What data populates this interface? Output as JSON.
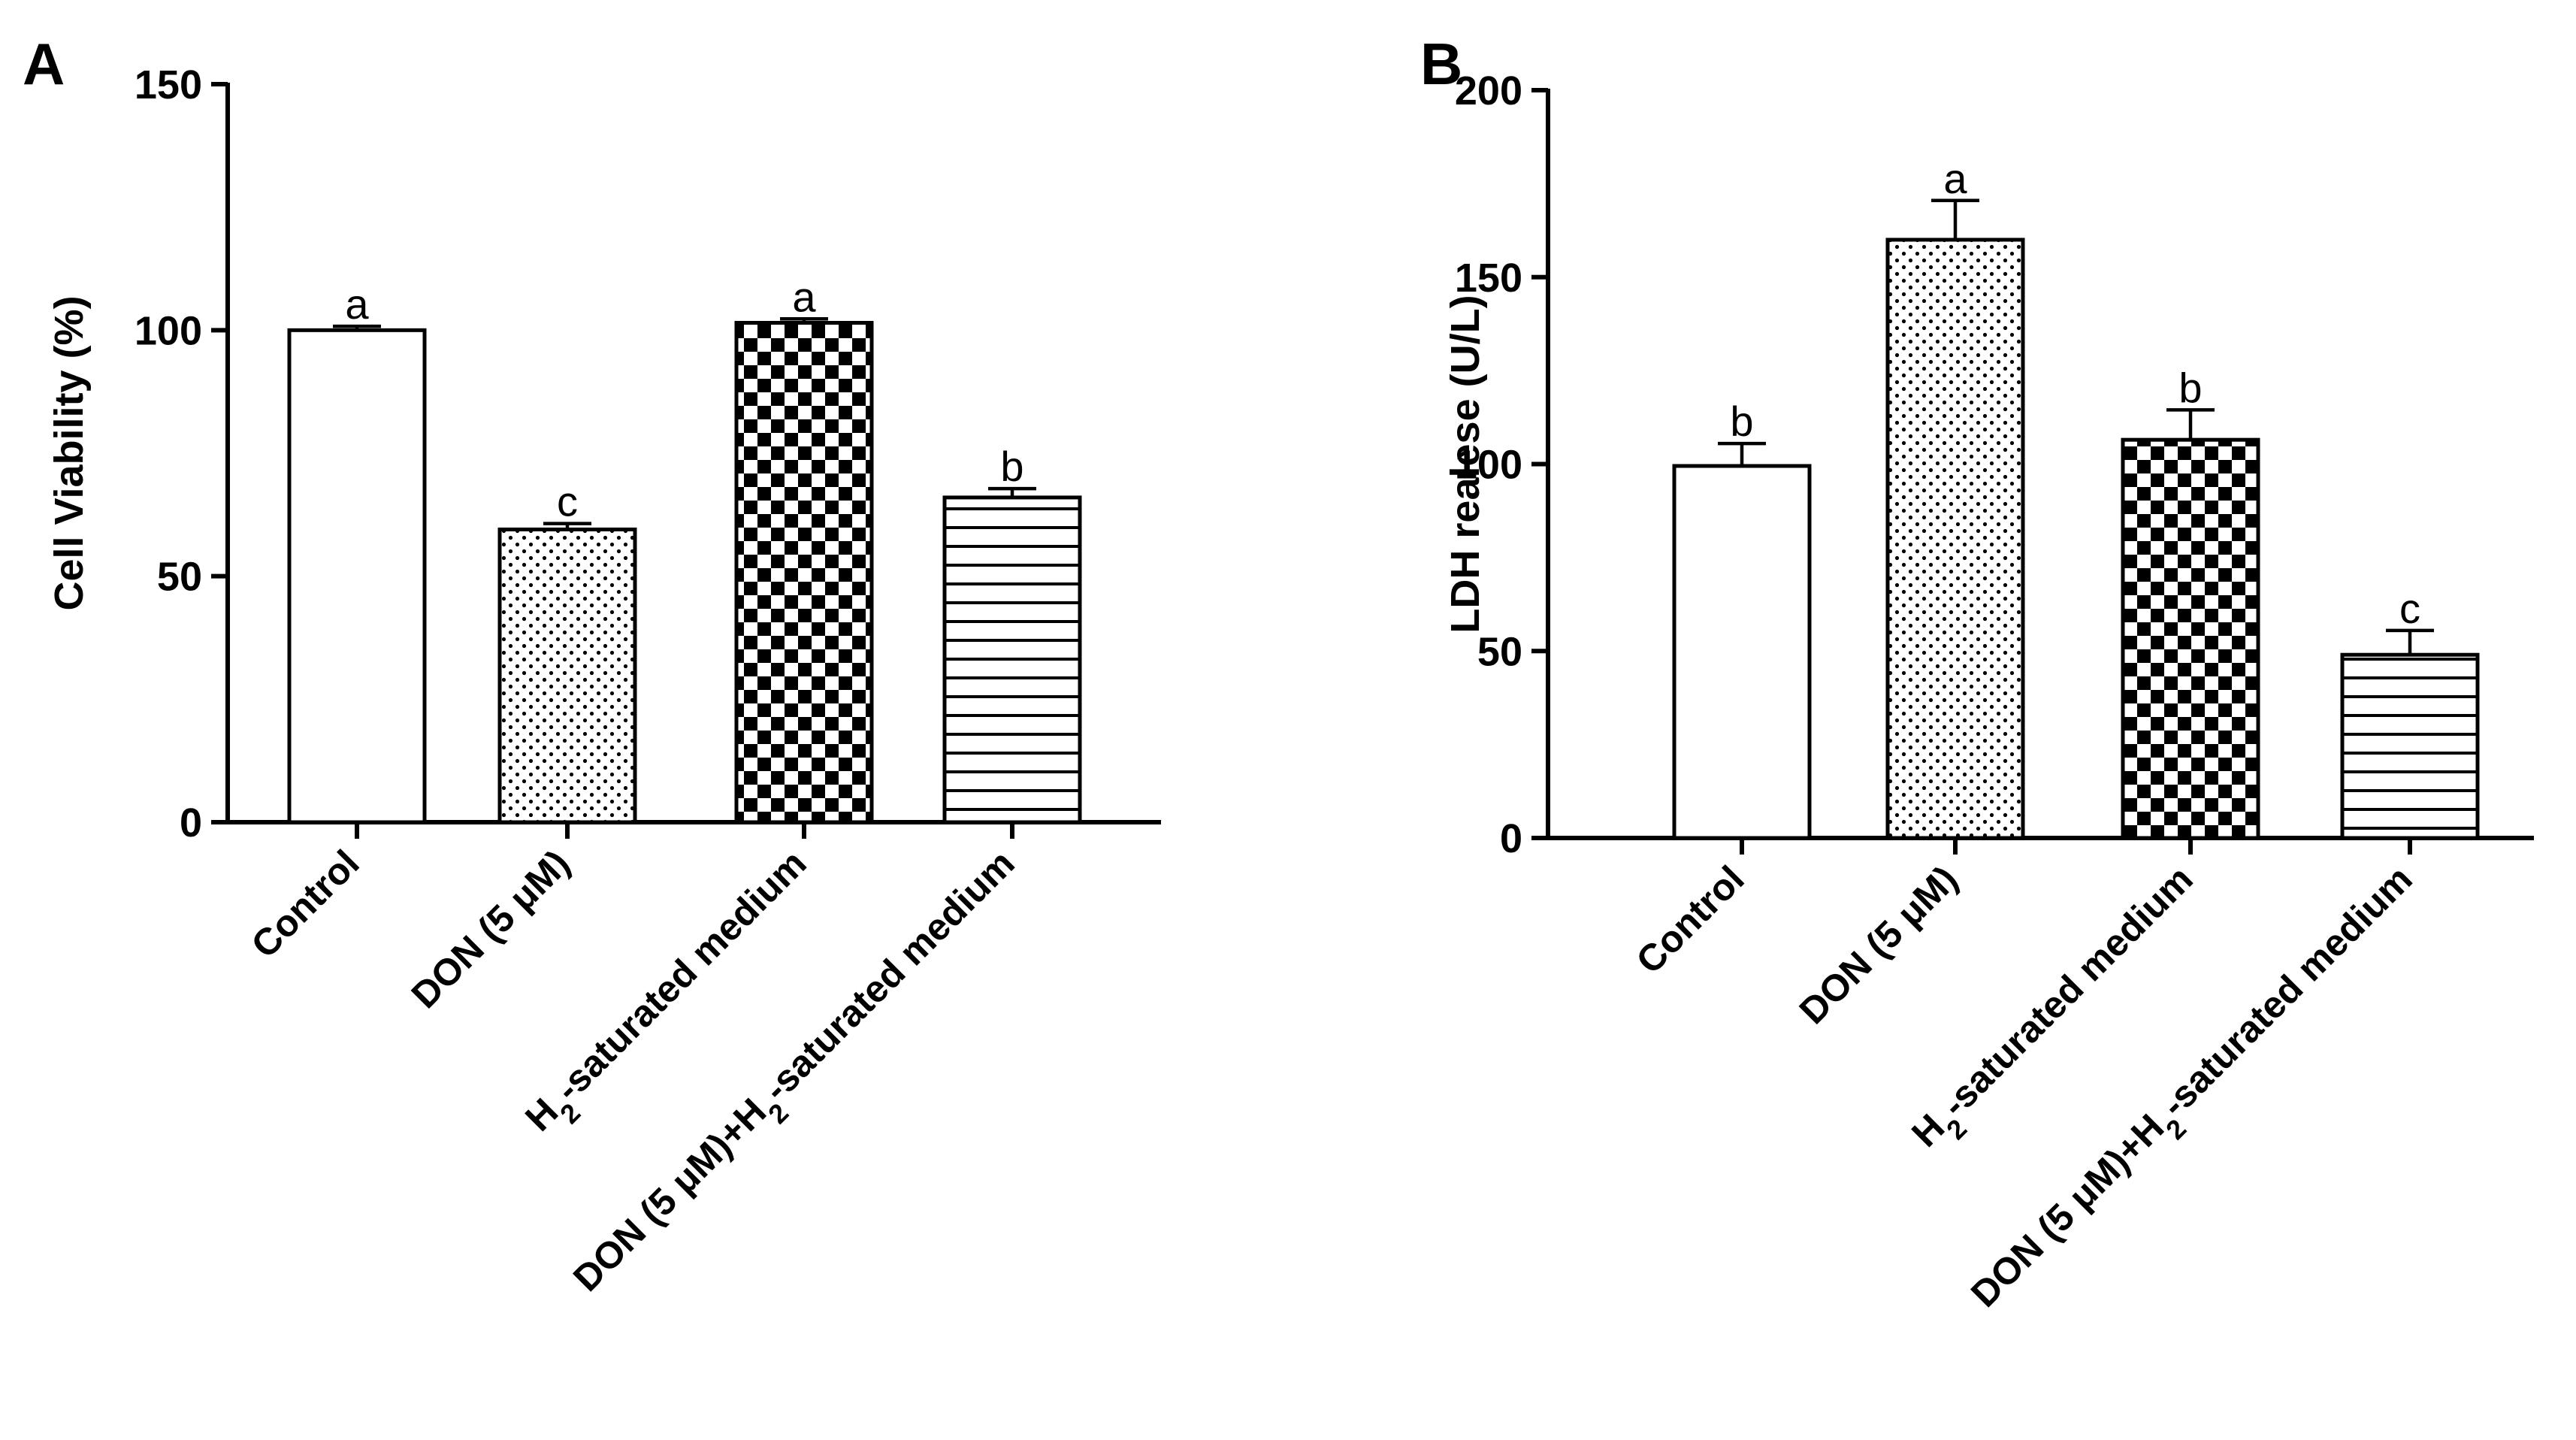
{
  "chart_data": [
    {
      "panel": "A",
      "type": "bar",
      "ylabel": "Cell Viability (%)",
      "ylim": [
        0,
        150
      ],
      "yticks": [
        0,
        50,
        100,
        150
      ],
      "categories": [
        "Control",
        "DON (5 μM)",
        "H₂-saturated medium",
        "DON (5 μM)+H₂-saturated medium"
      ],
      "values": [
        100,
        59.5,
        101.5,
        66
      ],
      "errors": [
        0.8,
        1.2,
        0.8,
        1.8
      ],
      "significance": [
        "a",
        "c",
        "a",
        "b"
      ],
      "patterns": [
        "white",
        "dots",
        "checker",
        "hlines"
      ]
    },
    {
      "panel": "B",
      "type": "bar",
      "ylabel": "LDH realese (U/L)",
      "ylim": [
        0,
        200
      ],
      "yticks": [
        0,
        50,
        100,
        150,
        200
      ],
      "categories": [
        "Control",
        "DON (5 μM)",
        "H₂-saturated medium",
        "DON (5 μM)+H₂-saturated medium"
      ],
      "values": [
        99.5,
        160,
        106.5,
        49
      ],
      "errors": [
        6,
        10.5,
        8,
        6.5
      ],
      "significance": [
        "b",
        "a",
        "b",
        "c"
      ],
      "patterns": [
        "white",
        "dots",
        "checker",
        "hlines"
      ]
    }
  ]
}
